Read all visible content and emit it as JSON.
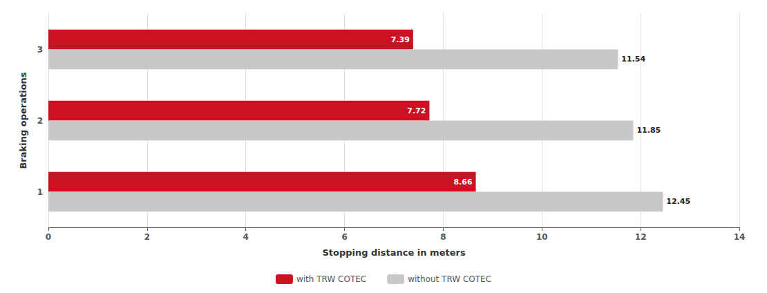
{
  "chart_data": {
    "type": "bar",
    "orientation": "horizontal",
    "categories": [
      "1",
      "2",
      "3"
    ],
    "series": [
      {
        "name": "with TRW COTEC",
        "color": "#cc1122",
        "values": [
          8.66,
          7.72,
          7.39
        ]
      },
      {
        "name": "without TRW COTEC",
        "color": "#c8c8c8",
        "values": [
          12.45,
          11.85,
          11.54
        ]
      }
    ],
    "xlabel": "Stopping distance in meters",
    "ylabel": "Braking operations",
    "xlim": [
      0,
      14
    ],
    "xticks": [
      0,
      2,
      4,
      6,
      8,
      10,
      12,
      14
    ],
    "grid": true,
    "legend": "bottom",
    "data_labels": true
  }
}
